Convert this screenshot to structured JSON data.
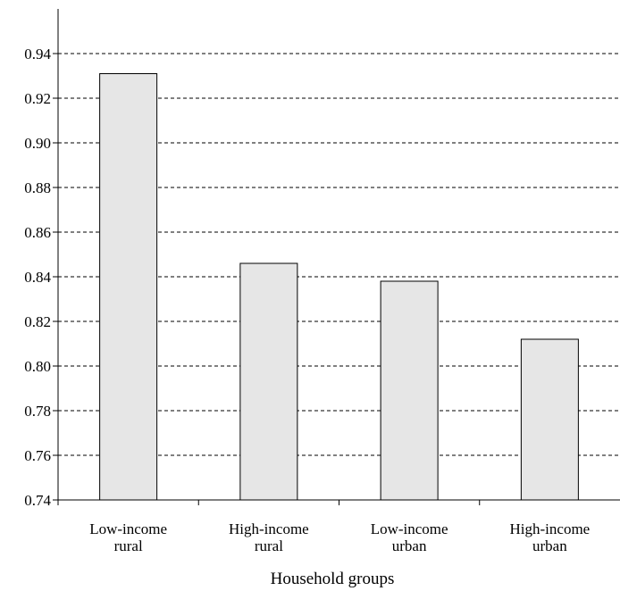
{
  "chart_data": {
    "type": "bar",
    "categories": [
      [
        "Low-income",
        "rural"
      ],
      [
        "High-income",
        "rural"
      ],
      [
        "Low-income",
        "urban"
      ],
      [
        "High-income",
        "urban"
      ]
    ],
    "values": [
      0.931,
      0.846,
      0.838,
      0.812
    ],
    "xlabel": "Household groups",
    "ylabel": "",
    "ylim": [
      0.74,
      0.94
    ],
    "yticks": [
      "0.74",
      "0.76",
      "0.78",
      "0.80",
      "0.82",
      "0.84",
      "0.86",
      "0.88",
      "0.90",
      "0.92",
      "0.94"
    ],
    "ytick_values": [
      0.74,
      0.76,
      0.78,
      0.8,
      0.82,
      0.84,
      0.86,
      0.88,
      0.9,
      0.92,
      0.94
    ],
    "grid": true,
    "legend": "none",
    "bar_color": "#e6e6e6"
  }
}
